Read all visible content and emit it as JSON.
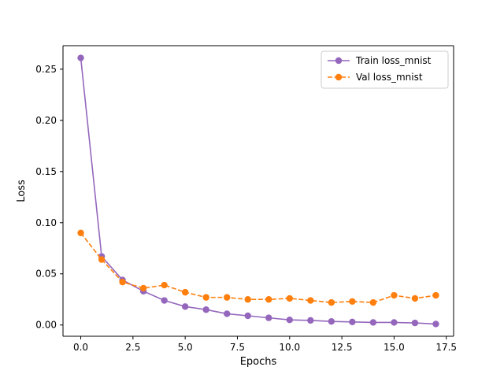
{
  "chart_data": {
    "type": "line",
    "xlabel": "Epochs",
    "ylabel": "Loss",
    "xlim": [
      -0.85,
      17.85
    ],
    "ylim": [
      -0.011,
      0.273
    ],
    "xticks": [
      0.0,
      2.5,
      5.0,
      7.5,
      10.0,
      12.5,
      15.0,
      17.5
    ],
    "xtick_labels": [
      "0.0",
      "2.5",
      "5.0",
      "7.5",
      "10.0",
      "12.5",
      "15.0",
      "17.5"
    ],
    "yticks": [
      0.0,
      0.05,
      0.1,
      0.15,
      0.2,
      0.25
    ],
    "ytick_labels": [
      "0.00",
      "0.05",
      "0.10",
      "0.15",
      "0.20",
      "0.25"
    ],
    "grid": false,
    "legend_position": "upper-right",
    "x": [
      0,
      1,
      2,
      3,
      4,
      5,
      6,
      7,
      8,
      9,
      10,
      11,
      12,
      13,
      14,
      15,
      16,
      17
    ],
    "series": [
      {
        "name": "Train loss_mnist",
        "color": "#9467bd",
        "style": "solid",
        "values": [
          0.261,
          0.067,
          0.044,
          0.033,
          0.024,
          0.018,
          0.015,
          0.011,
          0.009,
          0.007,
          0.005,
          0.0045,
          0.0035,
          0.003,
          0.0025,
          0.0025,
          0.002,
          0.001
        ]
      },
      {
        "name": "Val loss_mnist",
        "color": "#ff7f0e",
        "style": "dashed",
        "values": [
          0.09,
          0.064,
          0.042,
          0.036,
          0.039,
          0.032,
          0.027,
          0.027,
          0.025,
          0.025,
          0.026,
          0.024,
          0.022,
          0.023,
          0.022,
          0.029,
          0.026,
          0.029
        ]
      }
    ]
  }
}
